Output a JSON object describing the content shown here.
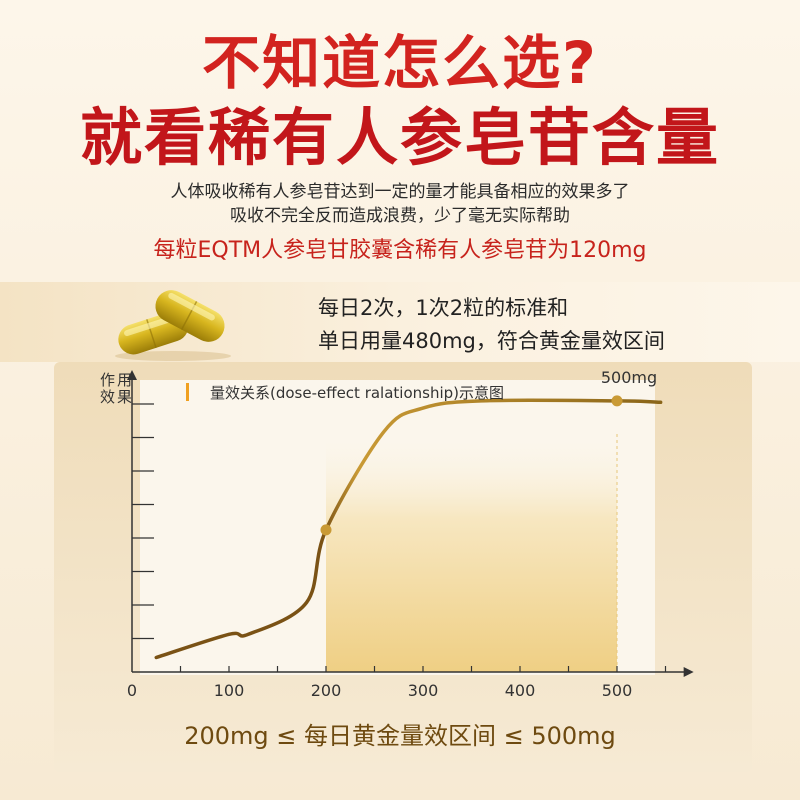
{
  "header": {
    "title_line1": "不知道怎么选?",
    "title_line2": "就看稀有人参皂苷含量",
    "desc_line1": "人体吸收稀有人参皂苷达到一定的量才能具备相应的效果多了",
    "desc_line2": "吸收不完全反而造成浪费，少了毫无实际帮助",
    "highlight": "每粒EQTM人参皂甘胶囊含稀有人参皂苷为120mg"
  },
  "dosage": {
    "line1": "每日2次，1次2粒的标准和",
    "line2": "单日用量480mg，符合黄金量效区间"
  },
  "icons": {
    "capsule": "capsule-icon"
  },
  "colors": {
    "title_red": "#d2231f",
    "curve_brown": "#7a5215",
    "curve_gold": "#d2a43c",
    "zone_gold": "#efcf84",
    "accent_orange": "#f0a020"
  },
  "chart_data": {
    "type": "line",
    "title": "量效关系(dose-effect ralationship)示意图",
    "ylabel": "作用效果",
    "xlabel": "",
    "x_ticks": [
      "0",
      "100",
      "200",
      "300",
      "400",
      "500"
    ],
    "xlim": [
      0,
      545
    ],
    "ylim": [
      0,
      1
    ],
    "grid": false,
    "highlight_range": [
      200,
      500
    ],
    "points": [
      {
        "x": 25,
        "y": 0.05
      },
      {
        "x": 100,
        "y": 0.13
      },
      {
        "x": 120,
        "y": 0.13
      },
      {
        "x": 180,
        "y": 0.24
      },
      {
        "x": 200,
        "y": 0.49
      },
      {
        "x": 260,
        "y": 0.83
      },
      {
        "x": 300,
        "y": 0.91
      },
      {
        "x": 360,
        "y": 0.935
      },
      {
        "x": 500,
        "y": 0.935
      },
      {
        "x": 545,
        "y": 0.93
      }
    ],
    "markers": [
      {
        "x": 200,
        "y": 0.49
      },
      {
        "x": 500,
        "y": 0.935,
        "label": "500mg"
      }
    ],
    "footer": "200mg ≤ 每日黄金量效区间 ≤ 500mg"
  }
}
